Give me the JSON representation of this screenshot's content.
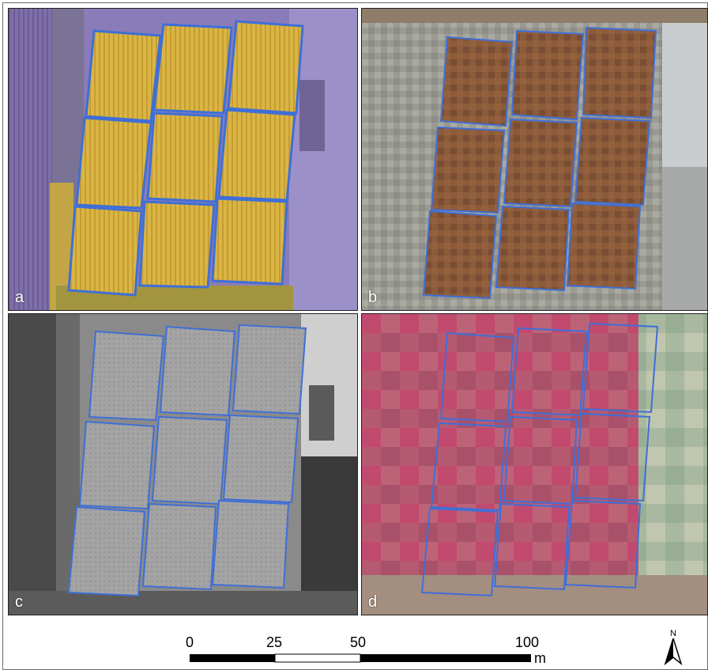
{
  "panels": [
    {
      "id": "a",
      "label": "a"
    },
    {
      "id": "b",
      "label": "b"
    },
    {
      "id": "c",
      "label": "c"
    },
    {
      "id": "d",
      "label": "d"
    }
  ],
  "scale_bar": {
    "ticks": [
      "0",
      "25",
      "50",
      "100"
    ],
    "unit": "m"
  },
  "north_arrow": {
    "label": "N",
    "icon": "north-arrow-icon"
  },
  "colors": {
    "plot_outline": "#3f6fd6",
    "panel_a_ground": "#8a78b8",
    "panel_a_crop": "#e0c050",
    "panel_b_crop": "#8a5a3a",
    "panel_c_ground": "#8c8c8c",
    "panel_d_crop": "#b04060"
  }
}
